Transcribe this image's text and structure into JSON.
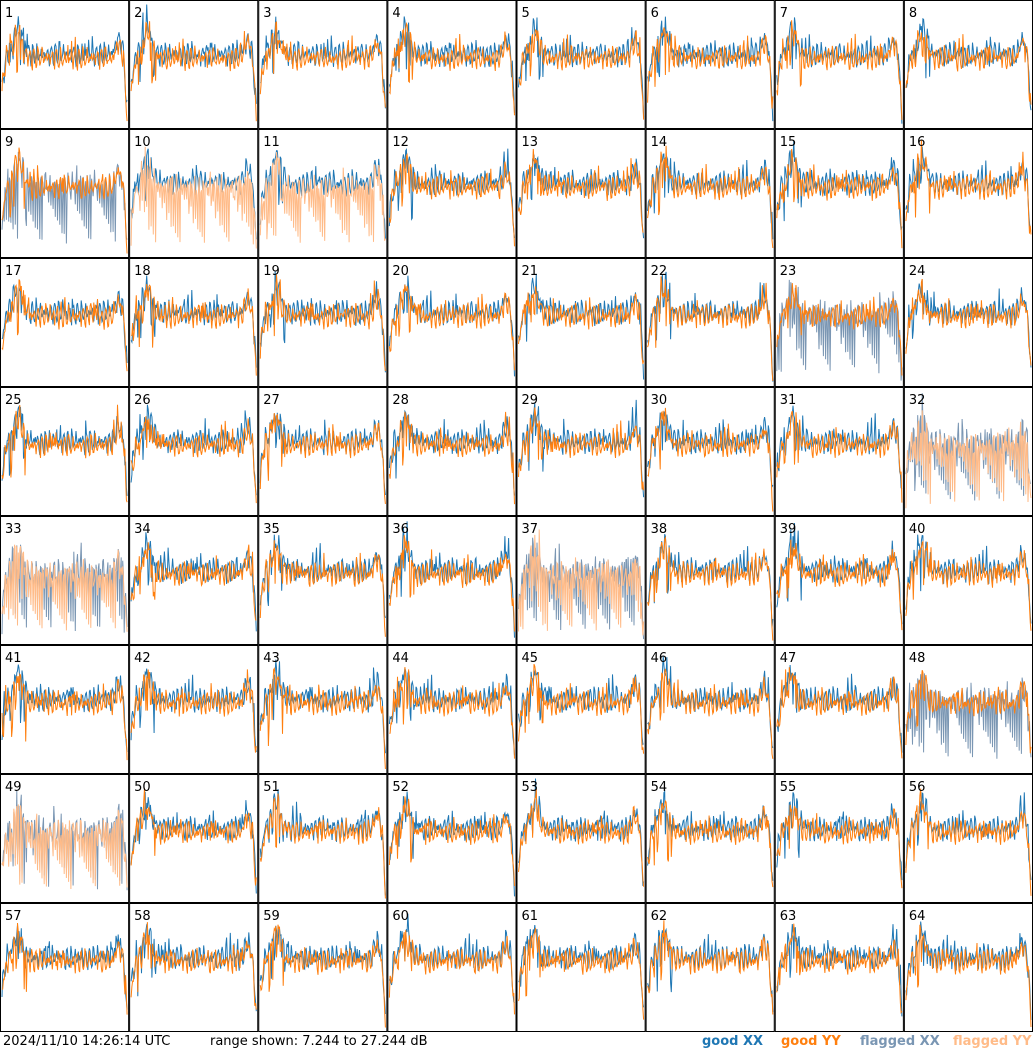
{
  "footer": {
    "timestamp": "2024/11/10 14:26:14 UTC",
    "range_text": "range shown: 7.244 to 27.244 dB",
    "legend": [
      {
        "label": "good XX",
        "color": "#1f77b4"
      },
      {
        "label": "good YY",
        "color": "#ff7f0e"
      },
      {
        "label": "flagged XX",
        "color": "#7a96b3"
      },
      {
        "label": "flagged YY",
        "color": "#ffbb88"
      }
    ]
  },
  "colors": {
    "good_xx": "#1f77b4",
    "good_yy": "#ff7f0e",
    "flagged_xx": "#7a96b3",
    "flagged_yy": "#ffbb88",
    "border": "#000000"
  },
  "chart_data": {
    "type": "line",
    "layout": "8x8 small multiples of antenna bandpass spectra",
    "ylim_db": [
      7.244,
      27.244
    ],
    "panels": [
      {
        "id": 1,
        "xx": "good",
        "yy": "good"
      },
      {
        "id": 2,
        "xx": "good",
        "yy": "good"
      },
      {
        "id": 3,
        "xx": "good",
        "yy": "good"
      },
      {
        "id": 4,
        "xx": "good",
        "yy": "good"
      },
      {
        "id": 5,
        "xx": "good",
        "yy": "good"
      },
      {
        "id": 6,
        "xx": "good",
        "yy": "good"
      },
      {
        "id": 7,
        "xx": "good",
        "yy": "good"
      },
      {
        "id": 8,
        "xx": "good",
        "yy": "good"
      },
      {
        "id": 9,
        "xx": "flagged",
        "yy": "good"
      },
      {
        "id": 10,
        "xx": "good",
        "yy": "flagged"
      },
      {
        "id": 11,
        "xx": "good",
        "yy": "flagged"
      },
      {
        "id": 12,
        "xx": "good",
        "yy": "good"
      },
      {
        "id": 13,
        "xx": "good",
        "yy": "good"
      },
      {
        "id": 14,
        "xx": "good",
        "yy": "good"
      },
      {
        "id": 15,
        "xx": "good",
        "yy": "good"
      },
      {
        "id": 16,
        "xx": "good",
        "yy": "good"
      },
      {
        "id": 17,
        "xx": "good",
        "yy": "good"
      },
      {
        "id": 18,
        "xx": "good",
        "yy": "good"
      },
      {
        "id": 19,
        "xx": "good",
        "yy": "good"
      },
      {
        "id": 20,
        "xx": "good",
        "yy": "good"
      },
      {
        "id": 21,
        "xx": "good",
        "yy": "good"
      },
      {
        "id": 22,
        "xx": "good",
        "yy": "good"
      },
      {
        "id": 23,
        "xx": "flagged",
        "yy": "good"
      },
      {
        "id": 24,
        "xx": "good",
        "yy": "good"
      },
      {
        "id": 25,
        "xx": "good",
        "yy": "good"
      },
      {
        "id": 26,
        "xx": "good",
        "yy": "good"
      },
      {
        "id": 27,
        "xx": "good",
        "yy": "good"
      },
      {
        "id": 28,
        "xx": "good",
        "yy": "good"
      },
      {
        "id": 29,
        "xx": "good",
        "yy": "good"
      },
      {
        "id": 30,
        "xx": "good",
        "yy": "good"
      },
      {
        "id": 31,
        "xx": "good",
        "yy": "good"
      },
      {
        "id": 32,
        "xx": "flagged",
        "yy": "flagged"
      },
      {
        "id": 33,
        "xx": "flagged",
        "yy": "flagged"
      },
      {
        "id": 34,
        "xx": "good",
        "yy": "good"
      },
      {
        "id": 35,
        "xx": "good",
        "yy": "good"
      },
      {
        "id": 36,
        "xx": "good",
        "yy": "good"
      },
      {
        "id": 37,
        "xx": "flagged",
        "yy": "flagged"
      },
      {
        "id": 38,
        "xx": "good",
        "yy": "good"
      },
      {
        "id": 39,
        "xx": "good",
        "yy": "good"
      },
      {
        "id": 40,
        "xx": "good",
        "yy": "good"
      },
      {
        "id": 41,
        "xx": "good",
        "yy": "good"
      },
      {
        "id": 42,
        "xx": "good",
        "yy": "good"
      },
      {
        "id": 43,
        "xx": "good",
        "yy": "good"
      },
      {
        "id": 44,
        "xx": "good",
        "yy": "good"
      },
      {
        "id": 45,
        "xx": "good",
        "yy": "good"
      },
      {
        "id": 46,
        "xx": "good",
        "yy": "good"
      },
      {
        "id": 47,
        "xx": "good",
        "yy": "good"
      },
      {
        "id": 48,
        "xx": "flagged",
        "yy": "good"
      },
      {
        "id": 49,
        "xx": "flagged",
        "yy": "flagged"
      },
      {
        "id": 50,
        "xx": "good",
        "yy": "good"
      },
      {
        "id": 51,
        "xx": "good",
        "yy": "good"
      },
      {
        "id": 52,
        "xx": "good",
        "yy": "good"
      },
      {
        "id": 53,
        "xx": "good",
        "yy": "good"
      },
      {
        "id": 54,
        "xx": "good",
        "yy": "good"
      },
      {
        "id": 55,
        "xx": "good",
        "yy": "good"
      },
      {
        "id": 56,
        "xx": "good",
        "yy": "good"
      },
      {
        "id": 57,
        "xx": "good",
        "yy": "good"
      },
      {
        "id": 58,
        "xx": "good",
        "yy": "good"
      },
      {
        "id": 59,
        "xx": "good",
        "yy": "good"
      },
      {
        "id": 60,
        "xx": "good",
        "yy": "good"
      },
      {
        "id": 61,
        "xx": "good",
        "yy": "good"
      },
      {
        "id": 62,
        "xx": "good",
        "yy": "good"
      },
      {
        "id": 63,
        "xx": "good",
        "yy": "good"
      },
      {
        "id": 64,
        "xx": "good",
        "yy": "good"
      }
    ]
  }
}
